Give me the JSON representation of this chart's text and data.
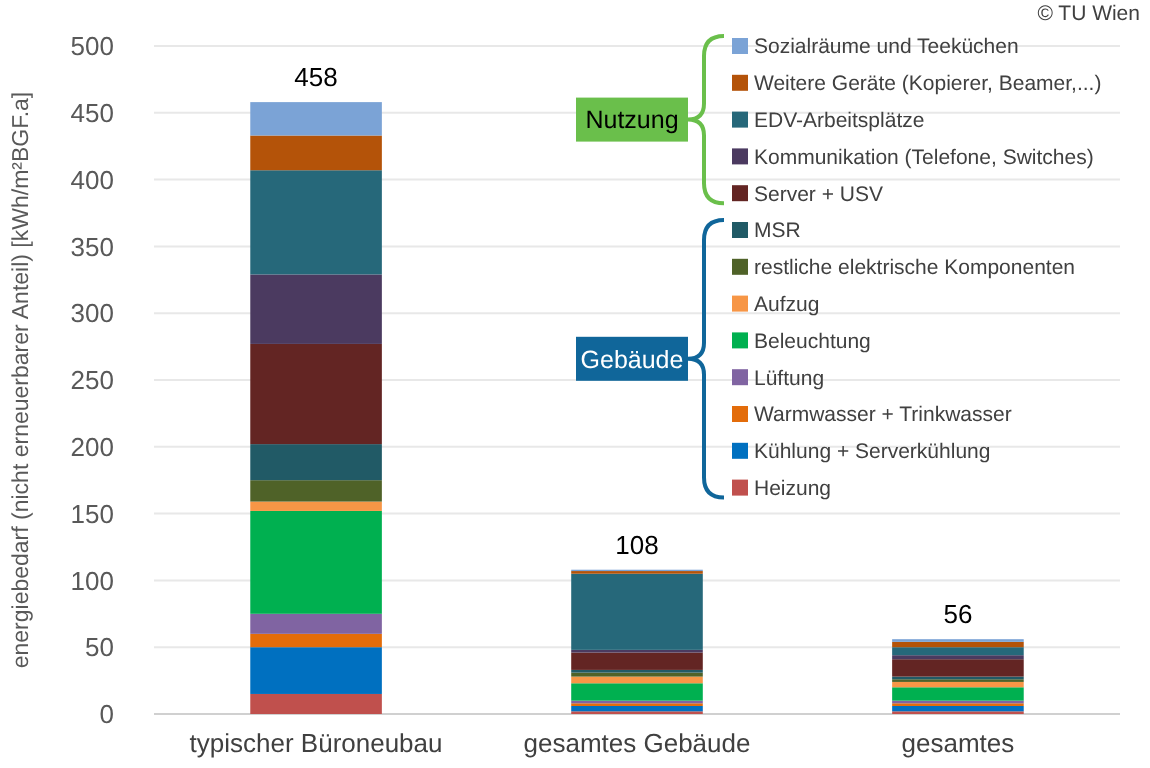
{
  "chart_data": {
    "type": "bar",
    "stacked": true,
    "ylabel": "energiebedarf (nicht erneuerbarer Anteil) [kWh/m²BGF.a]",
    "categories": [
      "typischer Büroneubau",
      "gesamtes Gebäude",
      "gesamtes"
    ],
    "series": [
      {
        "name": "Heizung",
        "color": "#c0504d",
        "values": [
          15,
          2,
          2
        ]
      },
      {
        "name": "Kühlung + Serverkühlung",
        "color": "#0070c0",
        "values": [
          35,
          4,
          4
        ]
      },
      {
        "name": "Warmwasser + Trinkwasser",
        "color": "#e36c0a",
        "values": [
          10,
          2,
          2
        ]
      },
      {
        "name": "Lüftung",
        "color": "#8064a2",
        "values": [
          15,
          2,
          2
        ]
      },
      {
        "name": "Beleuchtung",
        "color": "#00b050",
        "values": [
          77,
          13,
          10
        ]
      },
      {
        "name": "Aufzug",
        "color": "#f79646",
        "values": [
          7,
          5,
          4
        ]
      },
      {
        "name": "restliche elektrische Komponenten",
        "color": "#4f6228",
        "values": [
          16,
          3,
          2
        ]
      },
      {
        "name": "MSR",
        "color": "#215a66",
        "values": [
          27,
          2,
          2
        ]
      },
      {
        "name": "Server + USV",
        "color": "#632523",
        "values": [
          75,
          13,
          13
        ]
      },
      {
        "name": "Kommunikation (Telefone, Switches)",
        "color": "#4b3a60",
        "values": [
          52,
          2,
          3
        ]
      },
      {
        "name": "EDV-Arbeitsplätze",
        "color": "#26687a",
        "values": [
          78,
          57,
          6
        ]
      },
      {
        "name": "Weitere Geräte (Kopierer, Beamer,...)",
        "color": "#b45309",
        "values": [
          26,
          2,
          4
        ]
      },
      {
        "name": "Sozialräume und Teeküchen",
        "color": "#7ba3d6",
        "values": [
          25,
          1,
          2
        ]
      }
    ],
    "totals": [
      "458",
      "108",
      "56"
    ],
    "ylim": [
      0,
      500
    ],
    "yticks": [
      0,
      50,
      100,
      150,
      200,
      250,
      300,
      350,
      400,
      450,
      500
    ],
    "grid": "y",
    "legend": "top right",
    "annotations": [
      "© TU Wien",
      "Nutzung",
      "Gebäude"
    ]
  }
}
